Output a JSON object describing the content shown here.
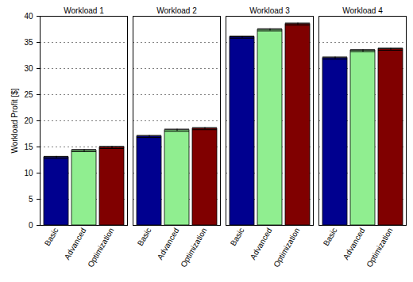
{
  "chart_data": {
    "type": "bar",
    "categories": [
      "Workload 1",
      "Workload 2",
      "Workload 3",
      "Workload 4"
    ],
    "y_label": "Workload Profit [$]",
    "series": [
      {
        "name": "Basic",
        "color": "#00008f",
        "values": [
          13.0,
          17.0,
          36.0,
          32.0
        ],
        "errors": [
          0.2,
          0.2,
          0.2,
          0.2
        ]
      },
      {
        "name": "Advanced",
        "color": "#90ee90",
        "values": [
          14.3,
          18.2,
          37.4,
          33.4
        ],
        "errors": [
          0.2,
          0.2,
          0.2,
          0.2
        ]
      },
      {
        "name": "Optimization",
        "color": "#800000",
        "values": [
          14.9,
          18.5,
          38.5,
          33.7
        ],
        "errors": [
          0.2,
          0.2,
          0.2,
          0.2
        ]
      }
    ],
    "ylim": [
      0,
      40
    ],
    "yticks": [
      0,
      5,
      10,
      15,
      20,
      25,
      30,
      35,
      40
    ],
    "grid": true
  }
}
